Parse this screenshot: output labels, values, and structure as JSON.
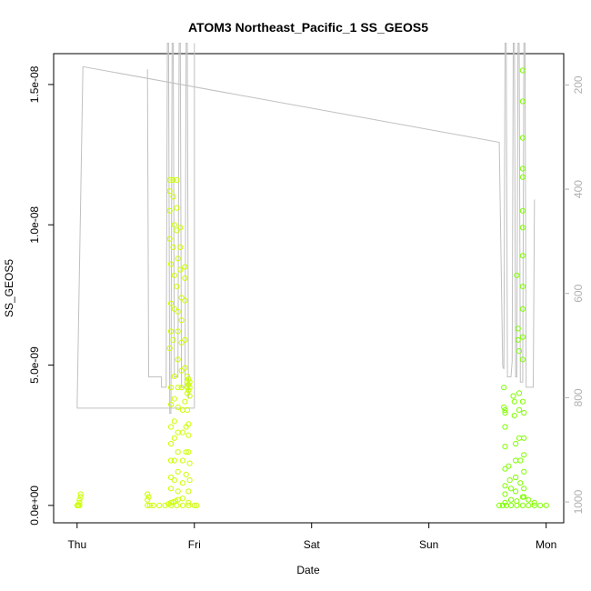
{
  "chart_data": {
    "type": "scatter",
    "title": "ATOM3 Northeast_Pacific_1 SS_GEOS5",
    "xlabel": "Date",
    "ylabel": "SS_GEOS5",
    "x_ticks": [
      "Thu",
      "Fri",
      "Sat",
      "Sun",
      "Mon"
    ],
    "y_ticks": [
      "0.0e+00",
      "5.0e-09",
      "1.0e-08",
      "1.5e-08"
    ],
    "y_tick_values": [
      0,
      5e-09,
      1e-08,
      1.5e-08
    ],
    "y_right_ticks": [
      "200",
      "400",
      "600",
      "800",
      "1000"
    ],
    "y_right_tick_values": [
      200,
      400,
      600,
      800,
      1000
    ],
    "xlim_days": [
      -0.2,
      4.15
    ],
    "ylim": [
      -6.2e-10,
      1.61e-08
    ],
    "y_right_lim": [
      1040,
      140
    ],
    "grid": false,
    "colors": {
      "early": "#ccff00",
      "late": "#7fff00",
      "pressure_line": "#c0c0c0"
    },
    "series": [
      {
        "kind": "scatter",
        "points": [
          [
            0.0,
            0
          ],
          [
            0.01,
            0
          ],
          [
            0.02,
            1e-10
          ],
          [
            0.02,
            2e-10
          ],
          [
            0.03,
            3e-10
          ],
          [
            0.03,
            4e-10
          ],
          [
            0.02,
            0
          ],
          [
            0.6,
            0
          ],
          [
            0.6,
            2e-10
          ],
          [
            0.61,
            3e-10
          ],
          [
            0.6,
            4e-10
          ],
          [
            0.62,
            0
          ],
          [
            0.65,
            0
          ],
          [
            0.7,
            0
          ],
          [
            0.75,
            0
          ],
          [
            0.8,
            0
          ],
          [
            0.85,
            0
          ],
          [
            0.9,
            0
          ],
          [
            0.95,
            0
          ],
          [
            1.0,
            0
          ],
          [
            1.02,
            0
          ],
          [
            0.78,
            5e-11
          ],
          [
            0.8,
            1e-10
          ],
          [
            0.82,
            1.2e-10
          ],
          [
            0.84,
            1.5e-10
          ],
          [
            0.86,
            2e-10
          ],
          [
            0.9,
            2.5e-10
          ],
          [
            0.95,
            1e-10
          ],
          [
            0.79,
            1.16e-08
          ],
          [
            0.79,
            1.12e-08
          ],
          [
            0.79,
            1.05e-08
          ],
          [
            0.79,
            9.5e-09
          ],
          [
            0.8,
            8.6e-09
          ],
          [
            0.8,
            7.2e-09
          ],
          [
            0.8,
            6.2e-09
          ],
          [
            0.79,
            5.6e-09
          ],
          [
            0.8,
            4.2e-09
          ],
          [
            0.8,
            3.6e-09
          ],
          [
            0.8,
            2.8e-09
          ],
          [
            0.8,
            2.2e-09
          ],
          [
            0.8,
            1.6e-09
          ],
          [
            0.8,
            1e-09
          ],
          [
            0.8,
            6e-10
          ],
          [
            0.82,
            1.16e-08
          ],
          [
            0.82,
            1.1e-08
          ],
          [
            0.83,
            1e-08
          ],
          [
            0.82,
            9.2e-09
          ],
          [
            0.83,
            8.2e-09
          ],
          [
            0.83,
            7e-09
          ],
          [
            0.82,
            5.9e-09
          ],
          [
            0.83,
            4.6e-09
          ],
          [
            0.83,
            3.8e-09
          ],
          [
            0.83,
            3e-09
          ],
          [
            0.83,
            2.4e-09
          ],
          [
            0.83,
            1.6e-09
          ],
          [
            0.83,
            9e-10
          ],
          [
            0.85,
            1.16e-08
          ],
          [
            0.85,
            1.06e-08
          ],
          [
            0.85,
            9.8e-09
          ],
          [
            0.86,
            8.8e-09
          ],
          [
            0.85,
            7.8e-09
          ],
          [
            0.86,
            6.9e-09
          ],
          [
            0.86,
            6.2e-09
          ],
          [
            0.86,
            5.2e-09
          ],
          [
            0.86,
            4.2e-09
          ],
          [
            0.86,
            3.5e-09
          ],
          [
            0.86,
            2.6e-09
          ],
          [
            0.86,
            1.9e-09
          ],
          [
            0.86,
            1.2e-09
          ],
          [
            0.86,
            5e-10
          ],
          [
            0.88,
            9.9e-09
          ],
          [
            0.88,
            9.2e-09
          ],
          [
            0.88,
            8.4e-09
          ],
          [
            0.89,
            7.4e-09
          ],
          [
            0.89,
            6.6e-09
          ],
          [
            0.89,
            5.8e-09
          ],
          [
            0.89,
            4.8e-09
          ],
          [
            0.89,
            4.2e-09
          ],
          [
            0.9,
            3.4e-09
          ],
          [
            0.9,
            2.6e-09
          ],
          [
            0.9,
            1.6e-09
          ],
          [
            0.9,
            8e-10
          ],
          [
            0.92,
            8.5e-09
          ],
          [
            0.92,
            8.1e-09
          ],
          [
            0.92,
            7.3e-09
          ],
          [
            0.92,
            5.9e-09
          ],
          [
            0.92,
            4.9e-09
          ],
          [
            0.92,
            3.7e-09
          ],
          [
            0.93,
            2.8e-09
          ],
          [
            0.93,
            1.9e-09
          ],
          [
            0.93,
            1.1e-09
          ],
          [
            0.94,
            4.6e-09
          ],
          [
            0.94,
            4.4e-09
          ],
          [
            0.94,
            4.2e-09
          ],
          [
            0.94,
            4e-09
          ],
          [
            0.95,
            4.5e-09
          ],
          [
            0.95,
            4.3e-09
          ],
          [
            0.95,
            4.1e-09
          ],
          [
            0.96,
            4.4e-09
          ],
          [
            0.96,
            4.2e-09
          ],
          [
            0.96,
            3.9e-09
          ],
          [
            0.94,
            3.4e-09
          ],
          [
            0.95,
            2.9e-09
          ],
          [
            0.95,
            2.5e-09
          ],
          [
            0.95,
            1.9e-09
          ],
          [
            0.96,
            1.5e-09
          ],
          [
            0.96,
            9e-10
          ],
          [
            0.95,
            5e-10
          ],
          [
            3.6,
            0
          ],
          [
            3.63,
            0
          ],
          [
            3.66,
            0
          ],
          [
            3.7,
            0
          ],
          [
            3.75,
            0
          ],
          [
            3.8,
            0
          ],
          [
            3.85,
            0
          ],
          [
            3.9,
            0
          ],
          [
            3.95,
            0
          ],
          [
            4.0,
            0
          ],
          [
            3.65,
            1e-10
          ],
          [
            3.7,
            2e-10
          ],
          [
            3.75,
            1.5e-10
          ],
          [
            3.8,
            3e-10
          ],
          [
            3.85,
            2e-10
          ],
          [
            3.9,
            1e-10
          ],
          [
            3.64,
            4.2e-09
          ],
          [
            3.64,
            3.5e-09
          ],
          [
            3.65,
            3.4e-09
          ],
          [
            3.65,
            3.3e-09
          ],
          [
            3.65,
            2.8e-09
          ],
          [
            3.65,
            2.1e-09
          ],
          [
            3.65,
            1.3e-09
          ],
          [
            3.65,
            7e-10
          ],
          [
            3.65,
            4e-10
          ],
          [
            3.68,
            1.4e-09
          ],
          [
            3.69,
            9e-10
          ],
          [
            3.7,
            6e-10
          ],
          [
            3.72,
            3.9e-09
          ],
          [
            3.73,
            3.7e-09
          ],
          [
            3.73,
            3.2e-09
          ],
          [
            3.74,
            2.2e-09
          ],
          [
            3.74,
            1.6e-09
          ],
          [
            3.74,
            1e-09
          ],
          [
            3.74,
            5e-10
          ],
          [
            3.76,
            6.3e-09
          ],
          [
            3.76,
            5.9e-09
          ],
          [
            3.77,
            5.5e-09
          ],
          [
            3.77,
            4e-09
          ],
          [
            3.77,
            3.4e-09
          ],
          [
            3.77,
            2.4e-09
          ],
          [
            3.78,
            1.6e-09
          ],
          [
            3.78,
            8e-10
          ],
          [
            3.75,
            8.2e-09
          ],
          [
            3.8,
            1.55e-08
          ],
          [
            3.8,
            1.44e-08
          ],
          [
            3.8,
            1.31e-08
          ],
          [
            3.8,
            1.2e-08
          ],
          [
            3.8,
            1.17e-08
          ],
          [
            3.8,
            1.05e-08
          ],
          [
            3.8,
            9.9e-09
          ],
          [
            3.8,
            8.9e-09
          ],
          [
            3.8,
            7.8e-09
          ],
          [
            3.8,
            7e-09
          ],
          [
            3.8,
            6e-09
          ],
          [
            3.8,
            5.2e-09
          ],
          [
            3.8,
            3.7e-09
          ],
          [
            3.81,
            3.3e-09
          ],
          [
            3.81,
            2.4e-09
          ],
          [
            3.81,
            1.8e-09
          ],
          [
            3.81,
            1.2e-09
          ],
          [
            3.81,
            6e-10
          ],
          [
            3.81,
            3e-10
          ]
        ]
      },
      {
        "kind": "pressure_line",
        "points": [
          [
            0.0,
            820
          ],
          [
            0.05,
            165
          ],
          [
            3.6,
            310
          ],
          [
            3.63,
            740
          ],
          [
            3.64,
            745
          ],
          [
            3.65,
            120
          ],
          [
            3.66,
            120
          ],
          [
            3.67,
            760
          ],
          [
            3.7,
            760
          ],
          [
            3.71,
            730
          ],
          [
            3.72,
            120
          ],
          [
            3.73,
            120
          ],
          [
            3.74,
            760
          ],
          [
            3.75,
            760
          ],
          [
            3.76,
            120
          ],
          [
            3.77,
            120
          ],
          [
            3.78,
            770
          ],
          [
            3.8,
            770
          ],
          [
            3.81,
            120
          ],
          [
            3.82,
            120
          ],
          [
            3.83,
            780
          ],
          [
            3.89,
            780
          ],
          [
            3.9,
            420
          ]
        ]
      },
      {
        "kind": "pressure_line",
        "points": [
          [
            0.0,
            820
          ],
          [
            1.0,
            820
          ],
          [
            1.0,
            120
          ]
        ]
      },
      {
        "kind": "pressure_line",
        "points": [
          [
            0.6,
            170
          ],
          [
            0.61,
            760
          ],
          [
            0.72,
            760
          ],
          [
            0.72,
            780
          ],
          [
            0.76,
            780
          ],
          [
            0.76,
            750
          ],
          [
            0.77,
            120
          ],
          [
            0.78,
            120
          ],
          [
            0.79,
            830
          ],
          [
            0.8,
            830
          ],
          [
            0.81,
            120
          ],
          [
            0.82,
            120
          ],
          [
            0.83,
            760
          ],
          [
            0.86,
            760
          ],
          [
            0.87,
            120
          ],
          [
            0.88,
            120
          ],
          [
            0.89,
            780
          ],
          [
            0.92,
            780
          ],
          [
            0.93,
            120
          ],
          [
            0.94,
            120
          ],
          [
            0.95,
            800
          ],
          [
            0.96,
            800
          ]
        ]
      }
    ]
  }
}
